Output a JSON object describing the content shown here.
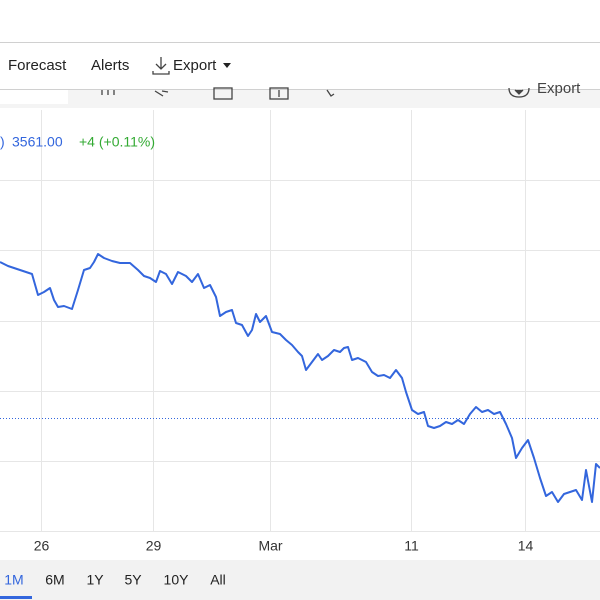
{
  "nav": {
    "items": [
      "Forecast",
      "Alerts",
      "Export"
    ]
  },
  "toolbar": {
    "export": "Export"
  },
  "legend": {
    "prefix": ")",
    "price": "3561.00",
    "change": "+4 (+0.11%)"
  },
  "ranges": {
    "items": [
      "1M",
      "6M",
      "1Y",
      "5Y",
      "10Y",
      "All"
    ],
    "selected": "1M"
  },
  "chart_data": {
    "type": "line",
    "x": [
      0,
      8,
      20,
      32,
      38,
      44,
      50,
      54,
      58,
      64,
      72,
      78,
      84,
      90,
      94,
      98,
      104,
      112,
      120,
      130,
      138,
      144,
      150,
      156,
      160,
      166,
      172,
      178,
      186,
      192,
      198,
      204,
      210,
      216,
      220,
      226,
      232,
      236,
      242,
      248,
      252,
      256,
      260,
      266,
      272,
      280,
      286,
      292,
      298,
      302,
      306,
      312,
      318,
      322,
      328,
      334,
      340,
      344,
      348,
      352,
      358,
      366,
      372,
      378,
      384,
      390,
      396,
      402,
      406,
      412,
      418,
      424,
      428,
      434,
      440,
      446,
      452,
      458,
      464,
      470,
      476,
      482,
      488,
      494,
      500,
      506,
      512,
      516,
      522,
      528,
      534,
      540,
      546,
      552,
      558,
      564,
      570,
      576,
      582,
      586,
      592,
      596,
      600
    ],
    "series": [
      {
        "color": "#3366dd",
        "values": [
          298,
          294,
          290,
          286,
          265,
          268,
          272,
          260,
          253,
          254,
          251,
          270,
          290,
          292,
          298,
          306,
          302,
          299,
          297,
          297,
          290,
          284,
          282,
          278,
          289,
          286,
          276,
          288,
          284,
          278,
          286,
          272,
          275,
          263,
          244,
          248,
          250,
          237,
          235,
          224,
          230,
          246,
          238,
          244,
          228,
          226,
          220,
          215,
          208,
          204,
          190,
          198,
          206,
          200,
          204,
          210,
          208,
          212,
          213,
          200,
          202,
          198,
          188,
          184,
          185,
          182,
          190,
          182,
          168,
          150,
          146,
          148,
          134,
          132,
          134,
          138,
          136,
          140,
          136,
          146,
          153,
          148,
          150,
          146,
          148,
          136,
          122,
          102,
          112,
          120,
          102,
          82,
          64,
          68,
          58,
          66,
          68,
          70,
          60,
          90,
          58,
          96,
          92
        ]
      }
    ],
    "xlim": [
      0,
      600
    ],
    "ylim": [
      0,
      450
    ],
    "xticks": [
      {
        "value": 41,
        "label": "26"
      },
      {
        "value": 153,
        "label": "29"
      },
      {
        "value": 270,
        "label": "Mar"
      },
      {
        "value": 411,
        "label": "11"
      },
      {
        "value": 525,
        "label": "14"
      }
    ],
    "yticks": [
      29,
      99,
      169,
      239,
      310,
      380
    ],
    "reference": 142,
    "grid": true
  }
}
